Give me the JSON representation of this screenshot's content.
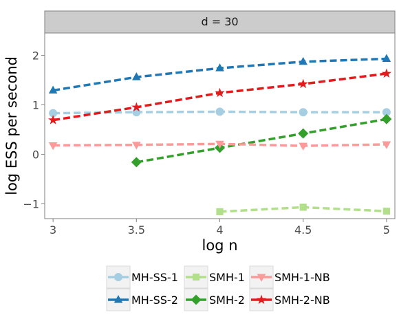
{
  "chart_data": {
    "type": "line",
    "panel_label": "d = 30",
    "xlabel": "log n",
    "ylabel": "log ESS per second",
    "xlim": [
      2.95,
      5.05
    ],
    "ylim": [
      -1.3,
      2.45
    ],
    "x_ticks": [
      3,
      3.5,
      4,
      4.5,
      5
    ],
    "x_tick_labels": [
      "3",
      "3.5",
      "4",
      "4.5",
      "5"
    ],
    "y_ticks": [
      -1,
      0,
      1,
      2
    ],
    "y_tick_labels": [
      "−1",
      "0",
      "1",
      "2"
    ],
    "grid": false,
    "legend_position": "bottom",
    "series": [
      {
        "name": "MH-SS-1",
        "color": "#a6cee3",
        "marker": "circle",
        "x": [
          3,
          3.5,
          4,
          4.5,
          5
        ],
        "y": [
          0.83,
          0.85,
          0.86,
          0.85,
          0.85
        ]
      },
      {
        "name": "MH-SS-2",
        "color": "#1f78b4",
        "marker": "triangle-up",
        "x": [
          3,
          3.5,
          4,
          4.5,
          5
        ],
        "y": [
          1.29,
          1.56,
          1.74,
          1.87,
          1.93
        ]
      },
      {
        "name": "SMH-1",
        "color": "#b2df8a",
        "marker": "square",
        "x": [
          4,
          4.5,
          5
        ],
        "y": [
          -1.16,
          -1.07,
          -1.15
        ]
      },
      {
        "name": "SMH-2",
        "color": "#33a02c",
        "marker": "diamond",
        "x": [
          3.5,
          4,
          4.5,
          5
        ],
        "y": [
          -0.16,
          0.13,
          0.42,
          0.71
        ]
      },
      {
        "name": "SMH-1-NB",
        "color": "#fb9a99",
        "marker": "triangle-down",
        "x": [
          3,
          3.5,
          4,
          4.5,
          5
        ],
        "y": [
          0.18,
          0.19,
          0.21,
          0.17,
          0.2
        ]
      },
      {
        "name": "SMH-2-NB",
        "color": "#e31a1c",
        "marker": "star",
        "x": [
          3,
          3.5,
          4,
          4.5,
          5
        ],
        "y": [
          0.69,
          0.95,
          1.24,
          1.42,
          1.63
        ]
      }
    ]
  }
}
